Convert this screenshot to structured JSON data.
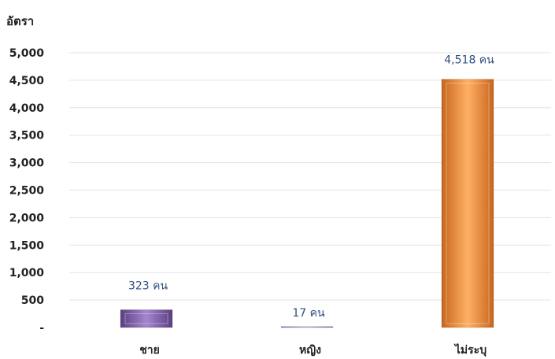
{
  "chart_data": {
    "type": "bar",
    "ylabel": "อัตรา",
    "categories": [
      "ชาย",
      "หญิง",
      "ไม่ระบุ"
    ],
    "values": [
      323,
      17,
      4518
    ],
    "data_labels": [
      "323 คน",
      "17 คน",
      "4,518 คน"
    ],
    "yticks": [
      0,
      500,
      1000,
      1500,
      2000,
      2500,
      3000,
      3500,
      4000,
      4500,
      5000
    ],
    "ytick_labels": [
      "-",
      "500",
      "1,000",
      "1,500",
      "2,000",
      "2,500",
      "3,000",
      "3,500",
      "4,000",
      "4,500",
      "5,000"
    ],
    "ylim": [
      0,
      5000
    ],
    "grid": true,
    "legend": false,
    "colors": [
      "#8e6bb8",
      "#9b8fd0",
      "#f79646"
    ]
  }
}
